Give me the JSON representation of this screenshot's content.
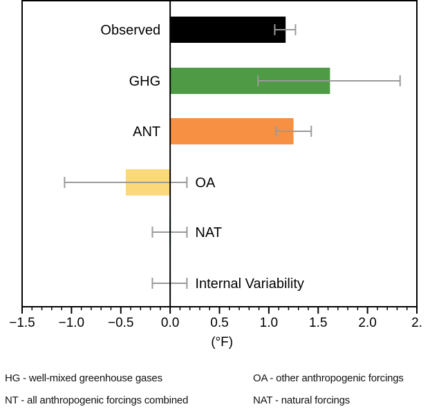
{
  "chart_data": {
    "type": "bar",
    "orientation": "horizontal",
    "xlabel": "(°F)",
    "xlim": [
      -1.5,
      2.5
    ],
    "x_ticks": [
      "−1.5",
      "−1.0",
      "−0.5",
      "0.0",
      "0.5",
      "1.0",
      "1.5",
      "2.0",
      "2."
    ],
    "grid": false,
    "categories": [
      "Observed",
      "GHG",
      "ANT",
      "OA",
      "NAT",
      "Internal Variability"
    ],
    "values": [
      1.17,
      1.62,
      1.25,
      -0.45,
      0.01,
      0.0
    ],
    "error_low": [
      1.06,
      0.89,
      1.07,
      -1.07,
      -0.18,
      -0.18
    ],
    "error_high": [
      1.27,
      2.33,
      1.43,
      0.17,
      0.17,
      0.17
    ],
    "colors": [
      "#000000",
      "#4e9a45",
      "#f79042",
      "#fbd97a",
      "#4dc3cf",
      "#dddddd"
    ],
    "error_color": "#999999"
  },
  "footnotes": [
    "HG - well-mixed greenhouse gases",
    "OA - other anthropogenic forcings",
    "NT - all anthropogenic forcings combined",
    "NAT - natural forcings"
  ]
}
